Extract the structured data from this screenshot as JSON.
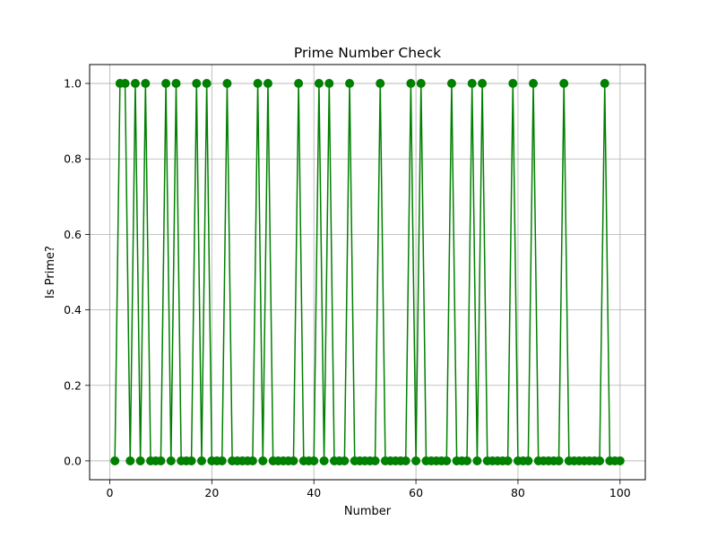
{
  "chart_data": {
    "type": "line",
    "title": "Prime Number Check",
    "xlabel": "Number",
    "ylabel": "Is Prime?",
    "xlim": [
      -3.95,
      104.95
    ],
    "ylim": [
      -0.05,
      1.05
    ],
    "xticks": [
      0,
      20,
      40,
      60,
      80,
      100
    ],
    "xtick_labels": [
      "0",
      "20",
      "40",
      "60",
      "80",
      "100"
    ],
    "yticks": [
      0.0,
      0.2,
      0.4,
      0.6,
      0.8,
      1.0
    ],
    "ytick_labels": [
      "0.0",
      "0.2",
      "0.4",
      "0.6",
      "0.8",
      "1.0"
    ],
    "grid": true,
    "legend": false,
    "marker": "circle",
    "color": "#008000",
    "x": [
      1,
      2,
      3,
      4,
      5,
      6,
      7,
      8,
      9,
      10,
      11,
      12,
      13,
      14,
      15,
      16,
      17,
      18,
      19,
      20,
      21,
      22,
      23,
      24,
      25,
      26,
      27,
      28,
      29,
      30,
      31,
      32,
      33,
      34,
      35,
      36,
      37,
      38,
      39,
      40,
      41,
      42,
      43,
      44,
      45,
      46,
      47,
      48,
      49,
      50,
      51,
      52,
      53,
      54,
      55,
      56,
      57,
      58,
      59,
      60,
      61,
      62,
      63,
      64,
      65,
      66,
      67,
      68,
      69,
      70,
      71,
      72,
      73,
      74,
      75,
      76,
      77,
      78,
      79,
      80,
      81,
      82,
      83,
      84,
      85,
      86,
      87,
      88,
      89,
      90,
      91,
      92,
      93,
      94,
      95,
      96,
      97,
      98,
      99,
      100
    ],
    "series": [
      {
        "values": [
          0,
          1,
          1,
          0,
          1,
          0,
          1,
          0,
          0,
          0,
          1,
          0,
          1,
          0,
          0,
          0,
          1,
          0,
          1,
          0,
          0,
          0,
          1,
          0,
          0,
          0,
          0,
          0,
          1,
          0,
          1,
          0,
          0,
          0,
          0,
          0,
          1,
          0,
          0,
          0,
          1,
          0,
          1,
          0,
          0,
          0,
          1,
          0,
          0,
          0,
          0,
          0,
          1,
          0,
          0,
          0,
          0,
          0,
          1,
          0,
          1,
          0,
          0,
          0,
          0,
          0,
          1,
          0,
          0,
          0,
          1,
          0,
          1,
          0,
          0,
          0,
          0,
          0,
          1,
          0,
          0,
          0,
          1,
          0,
          0,
          0,
          0,
          0,
          1,
          0,
          0,
          0,
          0,
          0,
          0,
          0,
          1,
          0,
          0,
          0
        ]
      }
    ]
  }
}
